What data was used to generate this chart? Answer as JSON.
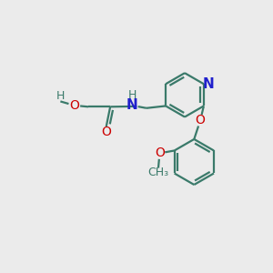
{
  "bg_color": "#ebebeb",
  "bond_color": "#3a7a6a",
  "N_color": "#2020cc",
  "O_color": "#cc0000",
  "line_width": 1.6,
  "font_size": 9,
  "figsize": [
    3.0,
    3.0
  ],
  "dpi": 100,
  "xlim": [
    0,
    10
  ],
  "ylim": [
    0,
    10
  ]
}
